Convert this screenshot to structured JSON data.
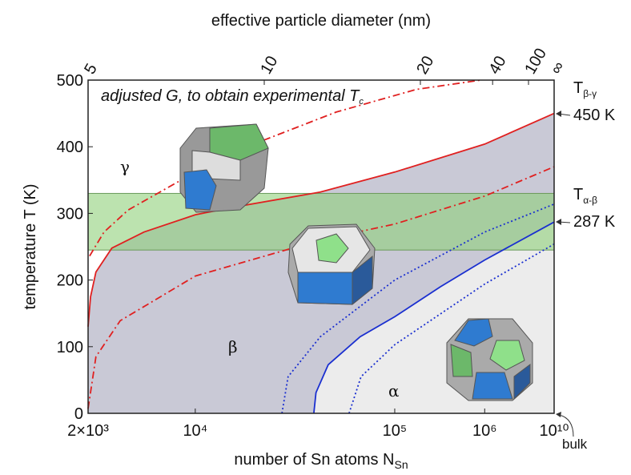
{
  "chart_data": {
    "type": "line",
    "x_label": {
      "text": "number of Sn atoms N",
      "sub": "Sn"
    },
    "y_label": "temperature T (K)",
    "x2_label": "effective particle diameter (nm)",
    "xscale": "log",
    "xlim": [
      2000,
      10000000000
    ],
    "xticks": [
      {
        "value": 2000,
        "label": "2×10³"
      },
      {
        "value": 10000,
        "label": "10⁴"
      },
      {
        "value": 100000,
        "label": "10⁵"
      },
      {
        "value": 1000000,
        "label": "10⁶"
      },
      {
        "value": 10000000000,
        "label": "10¹⁰"
      }
    ],
    "x2ticks": [
      5,
      10,
      20,
      40,
      100
    ],
    "x2_end_label": "∞",
    "bulk_label": "bulk",
    "ylim": [
      0,
      500
    ],
    "yticks": [
      0,
      100,
      200,
      300,
      400,
      500
    ],
    "band": {
      "from": 245,
      "to": 330,
      "color": "#8fd07a"
    },
    "regions": {
      "beta_color": "#c9c9d6",
      "alpha_color": "#ececec"
    },
    "series": [
      {
        "color": "#e02020",
        "style": "solid",
        "fill": "beta",
        "x": [
          2000,
          2075,
          2250,
          2860,
          4630,
          10000,
          16800,
          42400,
          100000,
          1000000,
          10000000000
        ],
        "values": [
          130,
          175,
          212,
          248,
          272,
          298,
          311,
          332,
          362,
          404,
          450
        ]
      },
      {
        "color": "#e02020",
        "style": "dashdot",
        "x": [
          2047,
          2540,
          3650,
          10000,
          22100,
          50900,
          174000,
          902000
        ],
        "values": [
          236,
          272,
          305,
          362,
          410,
          452,
          486,
          500
        ]
      },
      {
        "color": "#e02020",
        "style": "dashdot",
        "x": [
          2000,
          2250,
          3240,
          10000,
          42400,
          100000,
          1000000,
          10000000000
        ],
        "values": [
          7,
          85,
          139,
          206,
          260,
          284,
          326,
          370
        ]
      },
      {
        "color": "#1a2fd0",
        "style": "solid",
        "fill": "alpha",
        "x": [
          39300,
          40300,
          46400,
          67100,
          100000,
          323000,
          1000000,
          10000000000
        ],
        "values": [
          0,
          31,
          73,
          115,
          145,
          190,
          230,
          287
        ]
      },
      {
        "color": "#1a2fd0",
        "style": "dotted",
        "x": [
          27200,
          29200,
          42400,
          100000,
          1000000,
          10000000000
        ],
        "values": [
          0,
          55,
          115,
          200,
          272,
          314
        ]
      },
      {
        "color": "#1a2fd0",
        "style": "dotted",
        "x": [
          59000,
          67800,
          100000,
          1000000,
          10000000000
        ],
        "values": [
          0,
          55,
          103,
          194,
          254
        ]
      }
    ],
    "annotations": {
      "note": {
        "text": "adjusted G, to obtain experimental T",
        "sub": "c"
      },
      "gamma": "γ",
      "beta": "β",
      "alpha": "α",
      "t_beta_gamma": {
        "text": "T",
        "sub": "β-γ",
        "value": "450 K"
      },
      "t_alpha_beta": {
        "text": "T",
        "sub": "α-β",
        "value": "287 K"
      }
    }
  }
}
